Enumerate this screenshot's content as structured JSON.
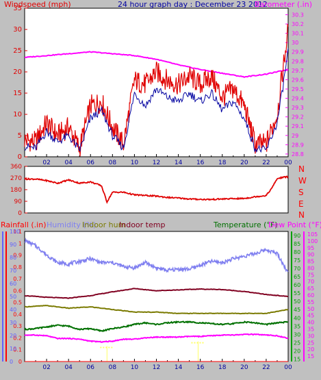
{
  "title": "24 hour graph day : December 23 2012",
  "colors": {
    "windspeed": "#e00000",
    "windavg": "#0000a0",
    "barometer": "#ff00ff",
    "direction": "#e00000",
    "rain": "#ff0000",
    "humidity": "#8080f0",
    "indoor_hum": "#7a7a00",
    "indoor_temp": "#800020",
    "temperature": "#007000",
    "dewpoint": "#ff00ff",
    "axis_blue": "#6060ff",
    "axis_green": "#00a000",
    "axis_magenta": "#ff00ff",
    "axis_red": "#ff0000"
  },
  "panels": {
    "wind": {
      "left_label": "Windspeed (mph)",
      "right_label": "Barometer (.in)"
    },
    "direction": {
      "compass": [
        "N",
        "W",
        "S",
        "E",
        "N"
      ]
    },
    "climate": {
      "labels": {
        "rainfall": "Rainfall (.in)",
        "humidity": "Humidity (%)",
        "indoor_hum": "Indoor hum",
        "indoor_temp": "Indoor temp",
        "temperature": "Temperature (°F)",
        "dewpoint": "Dew Point (°F)"
      }
    }
  },
  "chart_data": [
    {
      "type": "line",
      "panel": "wind",
      "x_ticks": [
        "02",
        "04",
        "06",
        "08",
        "10",
        "12",
        "14",
        "16",
        "18",
        "20",
        "22",
        "00"
      ],
      "left_axis": {
        "ticks": [
          0,
          5,
          10,
          15,
          20,
          25,
          30,
          35
        ],
        "range": [
          0,
          35
        ]
      },
      "right_axis": {
        "ticks": [
          28.8,
          28.9,
          29,
          29.1,
          29.2,
          29.3,
          29.4,
          29.5,
          29.6,
          29.7,
          29.8,
          29.9,
          30,
          30.1,
          30.2,
          30.3
        ],
        "range": [
          28.77,
          30.37
        ]
      },
      "series": [
        {
          "key": "windspeed",
          "axis": "left",
          "hours": [
            0,
            1,
            2,
            3,
            4,
            5,
            6,
            7,
            8,
            9,
            10,
            11,
            12,
            13,
            14,
            15,
            16,
            17,
            18,
            19,
            20,
            21,
            22,
            23,
            23.5,
            24
          ],
          "values": [
            4,
            3.5,
            8,
            5,
            7,
            2,
            12,
            13,
            7,
            3,
            18,
            17,
            20,
            18,
            17,
            19,
            17,
            19,
            14,
            16,
            12,
            3,
            3,
            10,
            20,
            30
          ]
        },
        {
          "key": "windavg",
          "axis": "left",
          "hours": [
            0,
            1,
            2,
            3,
            4,
            5,
            6,
            7,
            8,
            9,
            10,
            11,
            12,
            13,
            14,
            15,
            16,
            17,
            18,
            19,
            20,
            21,
            22,
            23,
            23.5,
            24
          ],
          "values": [
            2.5,
            2,
            6,
            3.5,
            5,
            1.5,
            9,
            11,
            5,
            2,
            15,
            12,
            16,
            14,
            13,
            15,
            13,
            15,
            11,
            13,
            9,
            2,
            1.5,
            8,
            16,
            25
          ]
        },
        {
          "key": "barometer",
          "axis": "right",
          "hours": [
            0,
            2,
            4,
            6,
            8,
            10,
            12,
            14,
            16,
            18,
            20,
            22,
            24
          ],
          "values": [
            29.84,
            29.86,
            29.88,
            29.9,
            29.88,
            29.86,
            29.82,
            29.76,
            29.71,
            29.67,
            29.63,
            29.66,
            29.71
          ]
        }
      ]
    },
    {
      "type": "line",
      "panel": "direction",
      "left_axis": {
        "ticks": [
          0,
          90,
          180,
          270,
          360
        ],
        "range": [
          0,
          360
        ]
      },
      "series": [
        {
          "key": "direction",
          "hours": [
            0,
            1,
            2,
            3,
            4,
            5,
            6,
            7,
            7.5,
            8,
            9,
            10,
            11,
            12,
            13,
            14,
            15,
            16,
            17,
            18,
            19,
            20,
            21,
            22,
            22.5,
            23,
            23.5,
            24
          ],
          "values": [
            262,
            262,
            250,
            230,
            255,
            230,
            240,
            210,
            85,
            160,
            160,
            140,
            135,
            130,
            120,
            115,
            108,
            105,
            104,
            108,
            110,
            112,
            125,
            135,
            190,
            265,
            275,
            280
          ]
        }
      ]
    },
    {
      "type": "line",
      "panel": "climate",
      "rain_axis": {
        "ticks": [
          0,
          0.1,
          0.2,
          0.3,
          0.4,
          0.5,
          0.6,
          0.7,
          0.8,
          0.9,
          1,
          1.1
        ],
        "range": [
          0,
          1.1
        ]
      },
      "humidity_axis": {
        "ticks": [
          0,
          10,
          20,
          30,
          40,
          50,
          60,
          70,
          80,
          90,
          100
        ],
        "range": [
          0,
          100
        ]
      },
      "temperature_axis": {
        "ticks": [
          15,
          20,
          25,
          30,
          35,
          40,
          45,
          50,
          55,
          60,
          65,
          70,
          75,
          80,
          85,
          90
        ],
        "range": [
          13.5,
          92.5
        ]
      },
      "dewpoint_axis": {
        "ticks": [
          15,
          20,
          25,
          30,
          35,
          40,
          45,
          50,
          55,
          60,
          65,
          70,
          75,
          80,
          85,
          90,
          95,
          100,
          105
        ],
        "range": [
          11,
          107
        ]
      },
      "series": [
        {
          "key": "humidity",
          "axis": "humidity",
          "hours": [
            0,
            1,
            2,
            3,
            4,
            5,
            6,
            7,
            8,
            9,
            10,
            11,
            12,
            13,
            14,
            15,
            16,
            17,
            18,
            19,
            20,
            21,
            22,
            23,
            24
          ],
          "values": [
            93,
            89,
            82,
            76,
            75,
            77,
            79,
            76,
            76,
            73,
            72,
            76,
            72,
            70,
            71,
            71,
            74,
            77,
            76,
            79,
            81,
            83,
            86,
            83,
            68
          ]
        },
        {
          "key": "indoor_temp",
          "axis": "temperature",
          "hours": [
            0,
            2,
            4,
            6,
            8,
            10,
            12,
            14,
            16,
            18,
            20,
            22,
            24
          ],
          "values": [
            53.5,
            52.5,
            52,
            53.5,
            55.8,
            57.8,
            56.5,
            57,
            57.5,
            57.2,
            56,
            54.2,
            53
          ]
        },
        {
          "key": "indoor_hum",
          "axis": "humidity",
          "hours": [
            0,
            2,
            4,
            6,
            8,
            10,
            12,
            14,
            16,
            18,
            20,
            22,
            24
          ],
          "values": [
            42,
            43,
            41,
            42,
            40,
            38,
            38,
            37,
            37,
            37,
            37,
            37,
            40
          ]
        },
        {
          "key": "temperature",
          "axis": "temperature",
          "hours": [
            0,
            1,
            2,
            3,
            4,
            5,
            6,
            7,
            8,
            9,
            10,
            11,
            12,
            13,
            14,
            15,
            16,
            17,
            18,
            19,
            20,
            21,
            22,
            23,
            24
          ],
          "values": [
            33,
            33.5,
            34.5,
            35.5,
            35,
            33,
            33.5,
            32,
            33.5,
            34.5,
            36,
            37,
            36,
            37,
            37.5,
            37.5,
            37,
            36.5,
            36,
            36.5,
            37.5,
            37,
            36,
            37,
            37.5
          ]
        },
        {
          "key": "dewpoint",
          "axis": "dewpoint",
          "hours": [
            0,
            1,
            2,
            3,
            4,
            5,
            6,
            7,
            8,
            9,
            10,
            11,
            12,
            13,
            14,
            15,
            16,
            17,
            18,
            19,
            20,
            21,
            22,
            23,
            24
          ],
          "values": [
            30.5,
            30.5,
            30,
            28,
            28,
            27.5,
            26,
            25.5,
            26,
            27.5,
            27.5,
            28.5,
            29,
            29,
            29,
            29.5,
            29.5,
            30,
            30.5,
            30.5,
            31,
            31,
            30.5,
            30,
            28
          ]
        },
        {
          "key": "rain_marks",
          "axis": "rain",
          "hours": [
            7.5,
            15.8
          ],
          "values": [
            0.13,
            0.17
          ]
        }
      ]
    }
  ]
}
